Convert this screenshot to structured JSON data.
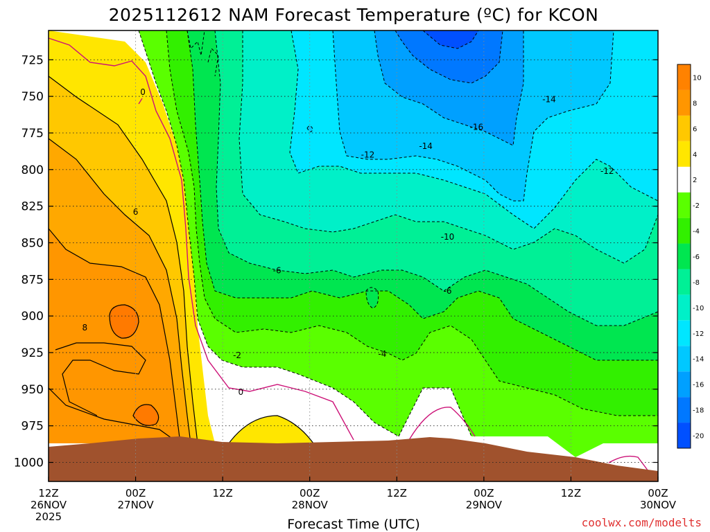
{
  "chart_data": {
    "type": "heatmap",
    "title": "2025112612 NAM Forecast Temperature (ºC) for KCON",
    "xlabel": "Forecast Time (UTC)",
    "ylabel": "",
    "credit": "coolwx.com/modelts",
    "y_ticks": [
      "725",
      "750",
      "775",
      "800",
      "825",
      "850",
      "875",
      "900",
      "925",
      "950",
      "975",
      "1000"
    ],
    "y_values": [
      725,
      750,
      775,
      800,
      825,
      850,
      875,
      900,
      925,
      950,
      975,
      1000
    ],
    "ylim": [
      705,
      1013
    ],
    "x_ticks": [
      {
        "h": 0,
        "l1": "12Z",
        "l2": "26NOV",
        "l3": "2025"
      },
      {
        "h": 12,
        "l1": "00Z",
        "l2": "27NOV",
        "l3": ""
      },
      {
        "h": 24,
        "l1": "12Z",
        "l2": "",
        "l3": ""
      },
      {
        "h": 36,
        "l1": "00Z",
        "l2": "28NOV",
        "l3": ""
      },
      {
        "h": 48,
        "l1": "12Z",
        "l2": "",
        "l3": ""
      },
      {
        "h": 60,
        "l1": "00Z",
        "l2": "29NOV",
        "l3": ""
      },
      {
        "h": 72,
        "l1": "12Z",
        "l2": "",
        "l3": ""
      },
      {
        "h": 84,
        "l1": "00Z",
        "l2": "30NOV",
        "l3": ""
      }
    ],
    "xlim": [
      0,
      84
    ],
    "colorbar": {
      "levels": [
        -20,
        -18,
        -16,
        -14,
        -12,
        -10,
        -8,
        -6,
        -4,
        -2,
        2,
        4,
        6,
        8,
        10
      ],
      "colors": [
        "#0050ff",
        "#0078ff",
        "#00a0ff",
        "#00c8ff",
        "#00e6ff",
        "#00f0c8",
        "#00f096",
        "#00e650",
        "#32f000",
        "#5aff00",
        "#ffffff",
        "#ffe600",
        "#ffc800",
        "#ff9600",
        "#ff8200"
      ]
    },
    "contour_labels": [
      {
        "text": "0",
        "h": 13,
        "p": 747
      },
      {
        "text": "6",
        "h": 12,
        "p": 829
      },
      {
        "text": "8",
        "h": 5,
        "p": 908
      },
      {
        "text": "-6",
        "h": 31.5,
        "p": 869
      },
      {
        "text": "-2",
        "h": 26,
        "p": 927
      },
      {
        "text": "0",
        "h": 26.5,
        "p": 952
      },
      {
        "text": "-4",
        "h": 46,
        "p": 926
      },
      {
        "text": "-6",
        "h": 55,
        "p": 883
      },
      {
        "text": "-10",
        "h": 55,
        "p": 846
      },
      {
        "text": "-12",
        "h": 44,
        "p": 790
      },
      {
        "text": "-14",
        "h": 52,
        "p": 784
      },
      {
        "text": "-16",
        "h": 59,
        "p": 771
      },
      {
        "text": "-14",
        "h": 69,
        "p": 752
      },
      {
        "text": "-12",
        "h": 77,
        "p": 801
      }
    ]
  }
}
